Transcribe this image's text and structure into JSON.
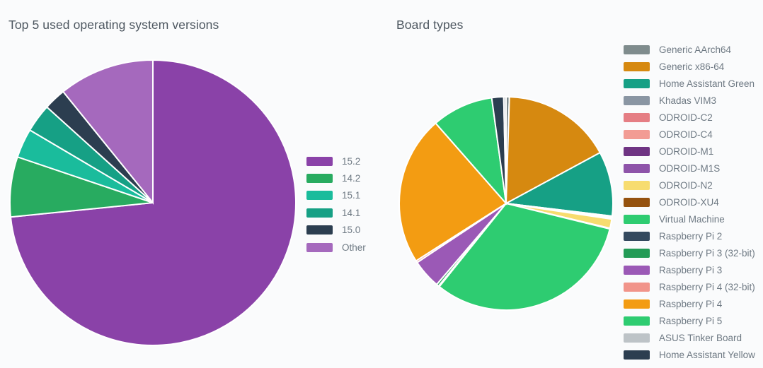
{
  "page": {
    "background_color": "#fafbfc",
    "title_color": "#4c565f",
    "legend_text_color": "#6e7983"
  },
  "chart_data": [
    {
      "type": "pie",
      "title": "Top 5 used operating system versions",
      "legend_position": "right",
      "unit": "percent",
      "slices": [
        {
          "label": "15.2",
          "value": 73.4,
          "color": "#8a42a8"
        },
        {
          "label": "14.2",
          "value": 6.8,
          "color": "#28ab60"
        },
        {
          "label": "15.1",
          "value": 3.3,
          "color": "#1abc9c"
        },
        {
          "label": "14.1",
          "value": 3.2,
          "color": "#16a085"
        },
        {
          "label": "15.0",
          "value": 2.5,
          "color": "#2c3e50"
        },
        {
          "label": "Other",
          "value": 10.8,
          "color": "#a569bd"
        }
      ]
    },
    {
      "type": "pie",
      "title": "Board types",
      "legend_position": "right",
      "unit": "percent",
      "slices": [
        {
          "label": "Generic AArch64",
          "value": 0.5,
          "color": "#7f8c8d"
        },
        {
          "label": "Generic x86-64",
          "value": 16.6,
          "color": "#d68910"
        },
        {
          "label": "Home Assistant Green",
          "value": 9.8,
          "color": "#16a085"
        },
        {
          "label": "Khadas VIM3",
          "value": 0.05,
          "color": "#8a96a3"
        },
        {
          "label": "ODROID-C2",
          "value": 0.05,
          "color": "#e57e84"
        },
        {
          "label": "ODROID-C4",
          "value": 0.1,
          "color": "#f29c94"
        },
        {
          "label": "ODROID-M1",
          "value": 0.2,
          "color": "#6f3483"
        },
        {
          "label": "ODROID-M1S",
          "value": 0.05,
          "color": "#8e54a9"
        },
        {
          "label": "ODROID-N2",
          "value": 1.4,
          "color": "#f7dc6f"
        },
        {
          "label": "ODROID-XU4",
          "value": 0.1,
          "color": "#95520f"
        },
        {
          "label": "Virtual Machine",
          "value": 31.9,
          "color": "#2ecc71"
        },
        {
          "label": "Raspberry Pi 2",
          "value": 0.15,
          "color": "#34495e"
        },
        {
          "label": "Raspberry Pi 3 (32-bit)",
          "value": 0.35,
          "color": "#239b56"
        },
        {
          "label": "Raspberry Pi 3",
          "value": 4.4,
          "color": "#9b59b6"
        },
        {
          "label": "Raspberry Pi 4 (32-bit)",
          "value": 0.3,
          "color": "#f1948a"
        },
        {
          "label": "Raspberry Pi 4",
          "value": 22.6,
          "color": "#f39c12"
        },
        {
          "label": "Raspberry Pi 5",
          "value": 9.3,
          "color": "#2ecc71"
        },
        {
          "label": "ASUS Tinker Board",
          "value": 0.35,
          "color": "#bdc3c7"
        },
        {
          "label": "Home Assistant Yellow",
          "value": 1.8,
          "color": "#2c3e50"
        }
      ],
      "draw_order": [
        "Generic AArch64",
        "Generic x86-64",
        "Home Assistant Green",
        "Khadas VIM3",
        "ODROID-C2",
        "ODROID-C4",
        "ODROID-M1",
        "ODROID-M1S",
        "ODROID-N2",
        "ODROID-XU4",
        "Virtual Machine",
        "Raspberry Pi 2",
        "Raspberry Pi 3 (32-bit)",
        "Raspberry Pi 3",
        "Raspberry Pi 4 (32-bit)",
        "Raspberry Pi 4",
        "Raspberry Pi 5",
        "Home Assistant Yellow",
        "ASUS Tinker Board"
      ]
    }
  ]
}
